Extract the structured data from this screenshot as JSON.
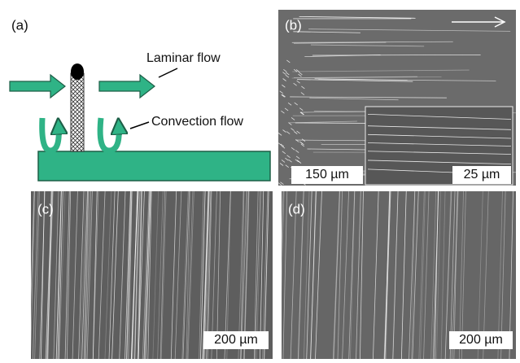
{
  "panels": [
    {
      "label": "(a)",
      "annotations": [
        "Laminar flow",
        "Convection flow"
      ]
    },
    {
      "label": "(b)",
      "scale_bars": [
        "150 µm",
        "25 µm"
      ]
    },
    {
      "label": "(c)",
      "scale_bar": "200 µm"
    },
    {
      "label": "(d)",
      "scale_bar": "200 µm"
    }
  ]
}
